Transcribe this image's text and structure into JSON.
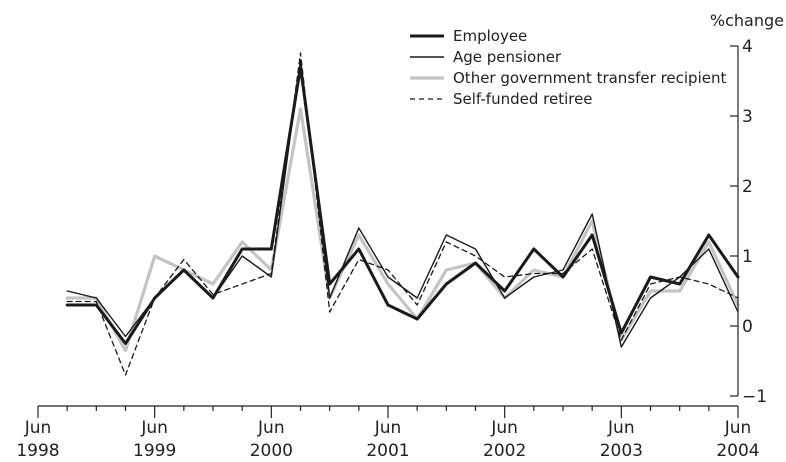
{
  "chart_data": {
    "type": "line",
    "unit_label": "%change",
    "x_ticks": [
      {
        "line1": "Jun",
        "line2": "1998"
      },
      {
        "line1": "Jun",
        "line2": "1999"
      },
      {
        "line1": "Jun",
        "line2": "2000"
      },
      {
        "line1": "Jun",
        "line2": "2001"
      },
      {
        "line1": "Jun",
        "line2": "2002"
      },
      {
        "line1": "Jun",
        "line2": "2003"
      },
      {
        "line1": "Jun",
        "line2": "2004"
      }
    ],
    "y_ticks": [
      "4",
      "3",
      "2",
      "1",
      "0",
      "−1"
    ],
    "ylim": [
      -1,
      4
    ],
    "xlim": [
      "1998-06",
      "2004-06"
    ],
    "y_axis_position": "right",
    "grid": false,
    "legend_position": "top-right",
    "x": [
      "1998-09",
      "1998-12",
      "1999-03",
      "1999-06",
      "1999-09",
      "1999-12",
      "2000-03",
      "2000-06",
      "2000-09",
      "2000-12",
      "2001-03",
      "2001-06",
      "2001-09",
      "2001-12",
      "2002-03",
      "2002-06",
      "2002-09",
      "2002-12",
      "2003-03",
      "2003-06",
      "2003-09",
      "2003-12",
      "2004-03",
      "2004-06"
    ],
    "series": [
      {
        "name": "Employee",
        "color": "#1a1a1a",
        "style": "thick",
        "values": [
          0.3,
          0.3,
          -0.25,
          0.4,
          0.8,
          0.4,
          1.1,
          1.1,
          3.7,
          0.6,
          1.1,
          0.3,
          0.1,
          0.6,
          0.9,
          0.5,
          1.1,
          0.7,
          1.3,
          -0.1,
          0.7,
          0.6,
          1.3,
          0.7
        ]
      },
      {
        "name": "Age pensioner",
        "color": "#1a1a1a",
        "style": "thin",
        "values": [
          0.5,
          0.4,
          -0.15,
          0.4,
          0.8,
          0.4,
          1.0,
          0.7,
          3.8,
          0.4,
          1.4,
          0.7,
          0.4,
          1.3,
          1.1,
          0.4,
          0.7,
          0.8,
          1.6,
          -0.3,
          0.4,
          0.7,
          1.1,
          0.2
        ]
      },
      {
        "name": "Other government transfer recipient",
        "color": "#c4c4c4",
        "style": "thick-light",
        "values": [
          0.4,
          0.4,
          -0.35,
          1.0,
          0.8,
          0.6,
          1.2,
          0.8,
          3.1,
          0.4,
          1.3,
          0.6,
          0.1,
          0.8,
          0.9,
          0.4,
          0.8,
          0.7,
          1.5,
          -0.2,
          0.5,
          0.5,
          1.2,
          0.3
        ]
      },
      {
        "name": "Self-funded retiree",
        "color": "#1a1a1a",
        "style": "dashed",
        "values": [
          0.35,
          0.35,
          -0.7,
          0.4,
          0.95,
          0.45,
          0.6,
          0.75,
          3.9,
          0.2,
          0.95,
          0.8,
          0.3,
          1.2,
          1.0,
          0.7,
          0.75,
          0.75,
          1.1,
          -0.2,
          0.6,
          0.7,
          0.6,
          0.4
        ]
      }
    ]
  }
}
